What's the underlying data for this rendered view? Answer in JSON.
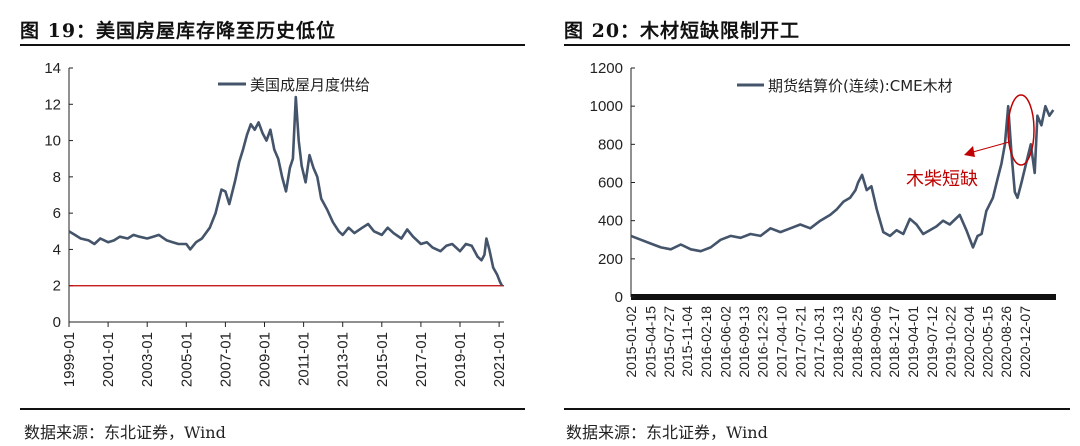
{
  "figures": [
    {
      "title": "图 19：美国房屋库存降至历史低位",
      "source": "数据来源：东北证券，Wind"
    },
    {
      "title": "图 20：木材短缺限制开工",
      "source": "数据来源：东北证券，Wind"
    }
  ],
  "colors": {
    "series": "#44546a",
    "reference": "#c00000",
    "annotation": "#c00000",
    "axis": "#222222"
  },
  "chart_data": [
    {
      "type": "line",
      "title": "图 19：美国房屋库存降至历史低位",
      "legend": [
        "美国成屋月度供给"
      ],
      "legend_position": "top-right",
      "ylim": [
        0,
        14
      ],
      "yticks": [
        "0",
        "2",
        "4",
        "6",
        "8",
        "10",
        "12",
        "14"
      ],
      "xlim": [
        1999.0,
        2021.25
      ],
      "xticks": [
        {
          "label": "1999-01",
          "x": 1999.0
        },
        {
          "label": "2001-01",
          "x": 2001.0
        },
        {
          "label": "2003-01",
          "x": 2003.0
        },
        {
          "label": "2005-01",
          "x": 2005.0
        },
        {
          "label": "2007-01",
          "x": 2007.0
        },
        {
          "label": "2009-01",
          "x": 2009.0
        },
        {
          "label": "2011-01",
          "x": 2011.0
        },
        {
          "label": "2013-01",
          "x": 2013.0
        },
        {
          "label": "2015-01",
          "x": 2015.0
        },
        {
          "label": "2017-01",
          "x": 2017.0
        },
        {
          "label": "2019-01",
          "x": 2019.0
        },
        {
          "label": "2021-01",
          "x": 2021.0
        }
      ],
      "reference_line": 2,
      "series": [
        {
          "name": "美国成屋月度供给",
          "x": [
            1999.0,
            1999.3,
            1999.6,
            2000.0,
            2000.3,
            2000.6,
            2001.0,
            2001.3,
            2001.6,
            2002.0,
            2002.3,
            2002.6,
            2003.0,
            2003.3,
            2003.6,
            2004.0,
            2004.3,
            2004.6,
            2005.0,
            2005.2,
            2005.5,
            2005.8,
            2006.2,
            2006.5,
            2006.8,
            2007.0,
            2007.2,
            2007.5,
            2007.7,
            2007.9,
            2008.1,
            2008.3,
            2008.5,
            2008.7,
            2008.9,
            2009.1,
            2009.3,
            2009.5,
            2009.7,
            2009.9,
            2010.1,
            2010.3,
            2010.45,
            2010.6,
            2010.75,
            2010.9,
            2011.1,
            2011.3,
            2011.5,
            2011.7,
            2011.9,
            2012.2,
            2012.5,
            2012.8,
            2013.0,
            2013.3,
            2013.6,
            2014.0,
            2014.3,
            2014.6,
            2015.0,
            2015.3,
            2015.6,
            2016.0,
            2016.3,
            2016.6,
            2017.0,
            2017.3,
            2017.6,
            2018.0,
            2018.3,
            2018.6,
            2019.0,
            2019.3,
            2019.6,
            2019.9,
            2020.1,
            2020.25,
            2020.35,
            2020.5,
            2020.7,
            2020.9,
            2021.05,
            2021.15
          ],
          "y": [
            5.0,
            4.8,
            4.6,
            4.5,
            4.3,
            4.6,
            4.4,
            4.5,
            4.7,
            4.6,
            4.8,
            4.7,
            4.6,
            4.7,
            4.8,
            4.5,
            4.4,
            4.3,
            4.3,
            4.0,
            4.4,
            4.6,
            5.2,
            6.0,
            7.3,
            7.2,
            6.5,
            7.8,
            8.8,
            9.5,
            10.3,
            10.9,
            10.6,
            11.0,
            10.4,
            10.0,
            10.6,
            9.5,
            9.0,
            8.0,
            7.2,
            8.5,
            9.0,
            12.4,
            10.0,
            8.6,
            7.7,
            9.2,
            8.5,
            8.0,
            6.8,
            6.2,
            5.5,
            5.0,
            4.8,
            5.2,
            4.9,
            5.2,
            5.4,
            5.0,
            4.8,
            5.2,
            4.9,
            4.6,
            5.1,
            4.7,
            4.3,
            4.4,
            4.1,
            3.9,
            4.2,
            4.3,
            3.9,
            4.3,
            4.2,
            3.6,
            3.4,
            3.7,
            4.6,
            4.0,
            3.0,
            2.6,
            2.2,
            2.0
          ]
        }
      ]
    },
    {
      "type": "line",
      "title": "图 20：木材短缺限制开工",
      "legend": [
        "期货结算价(连续):CME木材"
      ],
      "legend_position": "top-right",
      "annotation": "木柴短缺",
      "ylim": [
        0,
        1200
      ],
      "yticks": [
        "0",
        "200",
        "400",
        "600",
        "800",
        "1000",
        "1200"
      ],
      "xlim": [
        2015.0,
        2021.4
      ],
      "xticks": [
        {
          "label": "2015-01-02",
          "x": 2015.0
        },
        {
          "label": "2015-04-15",
          "x": 2015.29
        },
        {
          "label": "2015-07-27",
          "x": 2015.57
        },
        {
          "label": "2015-11-04",
          "x": 2015.84
        },
        {
          "label": "2016-02-18",
          "x": 2016.13
        },
        {
          "label": "2016-06-02",
          "x": 2016.42
        },
        {
          "label": "2016-09-13",
          "x": 2016.7
        },
        {
          "label": "2016-12-23",
          "x": 2016.98
        },
        {
          "label": "2017-04-10",
          "x": 2017.27
        },
        {
          "label": "2017-07-21",
          "x": 2017.55
        },
        {
          "label": "2017-10-31",
          "x": 2017.83
        },
        {
          "label": "2018-02-13",
          "x": 2018.12
        },
        {
          "label": "2018-05-25",
          "x": 2018.4
        },
        {
          "label": "2018-09-06",
          "x": 2018.68
        },
        {
          "label": "2018-12-17",
          "x": 2018.96
        },
        {
          "label": "2019-04-01",
          "x": 2019.25
        },
        {
          "label": "2019-07-12",
          "x": 2019.53
        },
        {
          "label": "2019-10-22",
          "x": 2019.81
        },
        {
          "label": "2020-02-04",
          "x": 2020.09
        },
        {
          "label": "2020-05-15",
          "x": 2020.37
        },
        {
          "label": "2020-08-26",
          "x": 2020.65
        },
        {
          "label": "2020-12-07",
          "x": 2020.93
        }
      ],
      "series": [
        {
          "name": "期货结算价(连续):CME木材",
          "x": [
            2015.0,
            2015.15,
            2015.3,
            2015.45,
            2015.6,
            2015.75,
            2015.9,
            2016.05,
            2016.2,
            2016.35,
            2016.5,
            2016.65,
            2016.8,
            2016.95,
            2017.1,
            2017.25,
            2017.4,
            2017.55,
            2017.7,
            2017.85,
            2018.0,
            2018.1,
            2018.2,
            2018.3,
            2018.38,
            2018.42,
            2018.48,
            2018.55,
            2018.62,
            2018.7,
            2018.8,
            2018.9,
            2019.0,
            2019.1,
            2019.2,
            2019.3,
            2019.4,
            2019.5,
            2019.6,
            2019.7,
            2019.8,
            2019.95,
            2020.05,
            2020.15,
            2020.22,
            2020.28,
            2020.35,
            2020.45,
            2020.52,
            2020.58,
            2020.63,
            2020.68,
            2020.73,
            2020.78,
            2020.82,
            2020.88,
            2020.95,
            2021.02,
            2021.08,
            2021.12,
            2021.18,
            2021.24,
            2021.3,
            2021.36
          ],
          "y": [
            320,
            300,
            280,
            260,
            250,
            275,
            250,
            240,
            260,
            300,
            320,
            310,
            330,
            320,
            360,
            340,
            360,
            380,
            360,
            400,
            430,
            460,
            500,
            520,
            560,
            600,
            640,
            560,
            580,
            460,
            340,
            320,
            350,
            330,
            410,
            380,
            330,
            350,
            370,
            400,
            380,
            430,
            350,
            260,
            320,
            330,
            450,
            520,
            620,
            700,
            800,
            1000,
            750,
            550,
            520,
            600,
            700,
            800,
            650,
            950,
            900,
            1000,
            950,
            980
          ]
        }
      ]
    }
  ]
}
